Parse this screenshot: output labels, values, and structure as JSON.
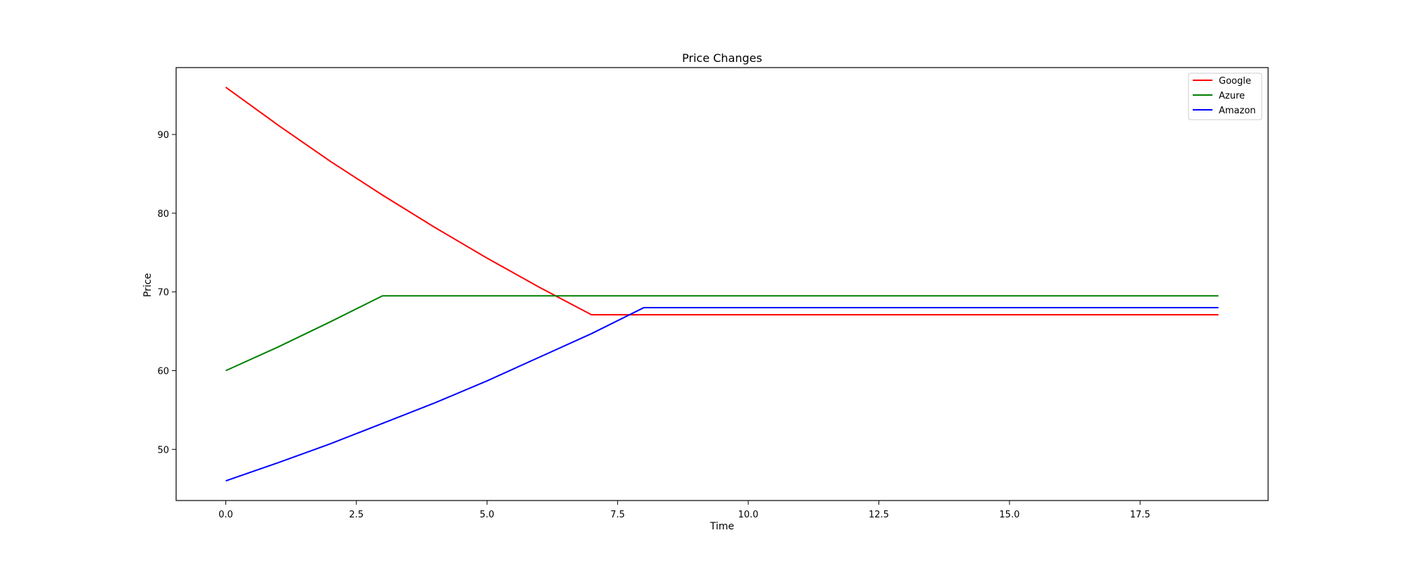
{
  "chart_data": {
    "type": "line",
    "title": "Price Changes",
    "xlabel": "Time",
    "ylabel": "Price",
    "xlim": [
      -0.95,
      19.95
    ],
    "ylim": [
      43.5,
      98.5
    ],
    "xticks": [
      0.0,
      2.5,
      5.0,
      7.5,
      10.0,
      12.5,
      15.0,
      17.5
    ],
    "xtick_labels": [
      "0.0",
      "2.5",
      "5.0",
      "7.5",
      "10.0",
      "12.5",
      "15.0",
      "17.5"
    ],
    "yticks": [
      50,
      60,
      70,
      80,
      90
    ],
    "ytick_labels": [
      "50",
      "60",
      "70",
      "80",
      "90"
    ],
    "grid": false,
    "legend_position": "top-right",
    "x": [
      0,
      1,
      2,
      3,
      4,
      5,
      6,
      7,
      8,
      9,
      10,
      11,
      12,
      13,
      14,
      15,
      16,
      17,
      18,
      19
    ],
    "series": [
      {
        "name": "Google",
        "color": "#ff0000",
        "values": [
          96.0,
          91.2,
          86.6,
          82.3,
          78.2,
          74.3,
          70.6,
          67.1,
          67.1,
          67.1,
          67.1,
          67.1,
          67.1,
          67.1,
          67.1,
          67.1,
          67.1,
          67.1,
          67.1,
          67.1
        ]
      },
      {
        "name": "Azure",
        "color": "#008000",
        "values": [
          60.0,
          63.0,
          66.2,
          69.5,
          69.5,
          69.5,
          69.5,
          69.5,
          69.5,
          69.5,
          69.5,
          69.5,
          69.5,
          69.5,
          69.5,
          69.5,
          69.5,
          69.5,
          69.5,
          69.5
        ]
      },
      {
        "name": "Amazon",
        "color": "#0000ff",
        "values": [
          46.0,
          48.3,
          50.7,
          53.3,
          55.9,
          58.7,
          61.7,
          64.7,
          68.0,
          68.0,
          68.0,
          68.0,
          68.0,
          68.0,
          68.0,
          68.0,
          68.0,
          68.0,
          68.0,
          68.0
        ]
      }
    ]
  }
}
